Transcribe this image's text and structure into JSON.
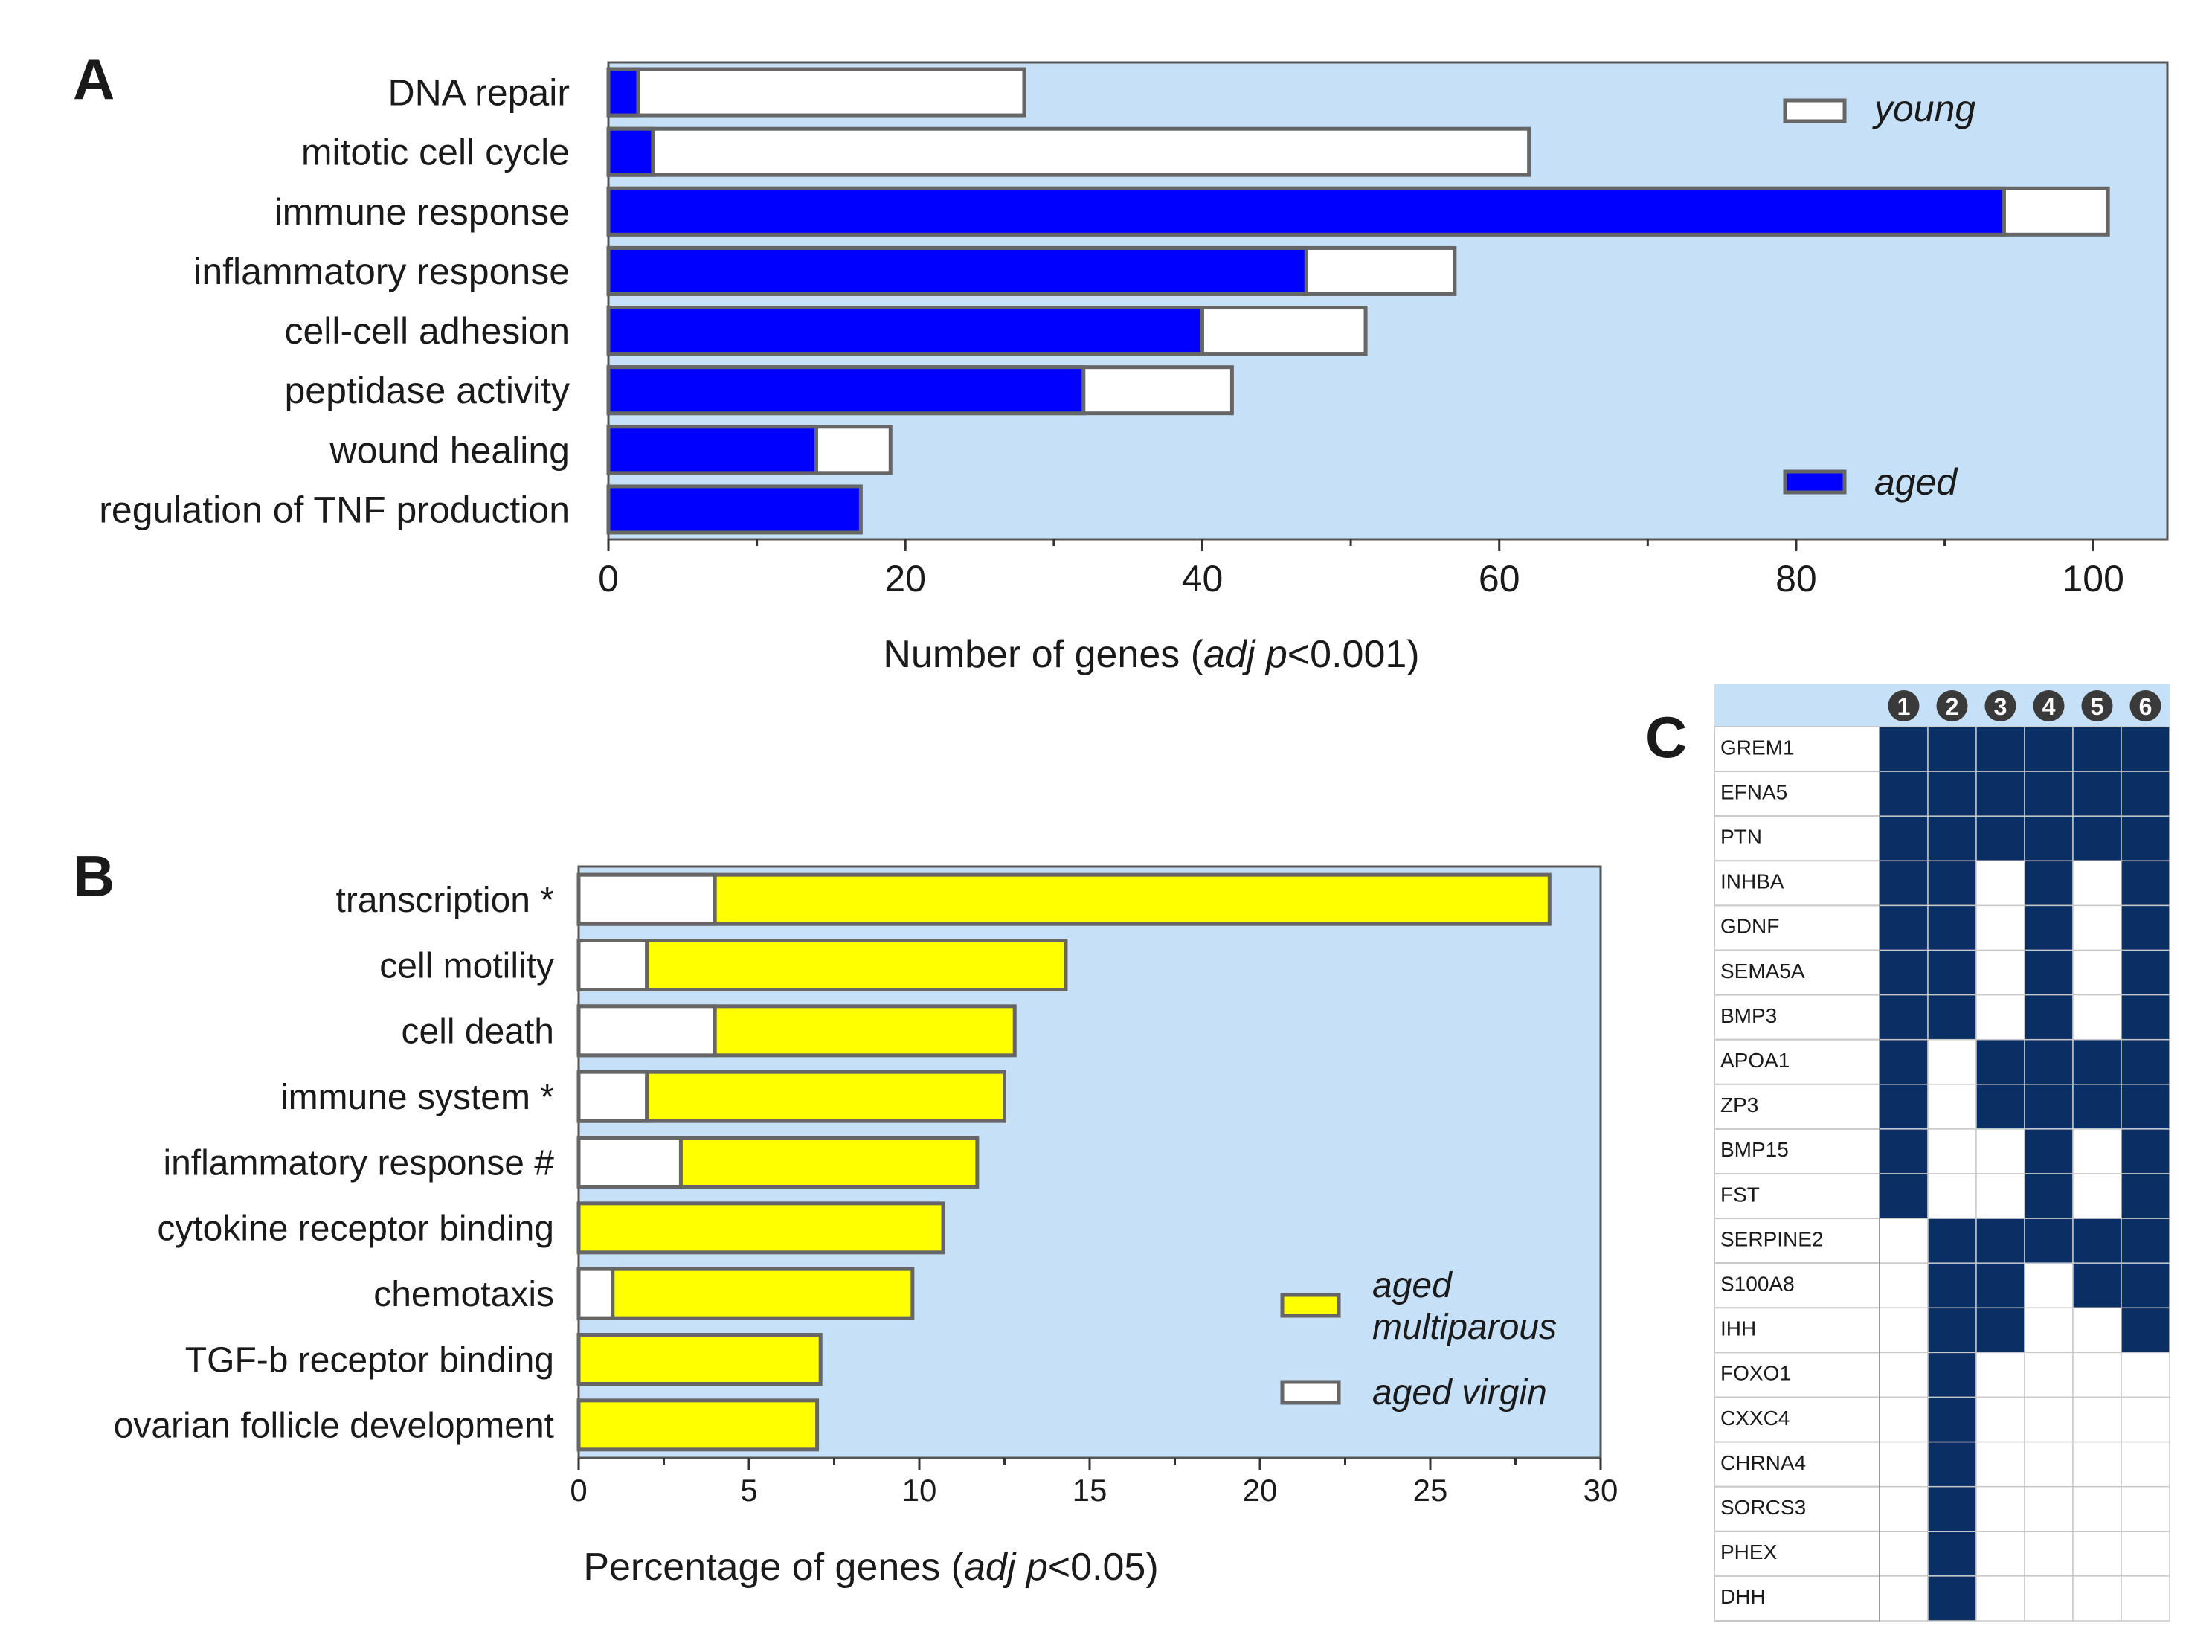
{
  "chart_data": [
    {
      "panel": "A",
      "type": "bar",
      "orientation": "horizontal",
      "layout": "overlapped",
      "categories": [
        "DNA repair",
        "mitotic cell cycle",
        "immune response",
        "inflammatory response",
        "cell-cell adhesion",
        "peptidase activity",
        "wound healing",
        "regulation of TNF production"
      ],
      "series": [
        {
          "name": "young",
          "color": "#ffffff",
          "values": [
            28,
            62,
            101,
            57,
            51,
            42,
            19,
            0
          ]
        },
        {
          "name": "aged",
          "color": "#0000ff",
          "values": [
            2,
            3,
            94,
            47,
            40,
            32,
            14,
            17
          ]
        }
      ],
      "xlim": [
        0,
        105
      ],
      "xticks": [
        0,
        20,
        40,
        60,
        80,
        100
      ],
      "xlabel": {
        "prefix": "Number of genes (",
        "italic": "adj p",
        "suffix": "<0.001)"
      },
      "legend_position": "right",
      "background": "#c5e0f7"
    },
    {
      "panel": "B",
      "type": "bar",
      "orientation": "horizontal",
      "layout": "overlapped",
      "categories": [
        "transcription *",
        "cell motility",
        "cell death",
        "immune system *",
        "inflammatory response #",
        "cytokine receptor binding",
        "chemotaxis",
        "TGF-b receptor binding",
        "ovarian follicle development"
      ],
      "series": [
        {
          "name": "aged multiparous",
          "color": "#ffff00",
          "values": [
            28.5,
            14.3,
            12.8,
            12.5,
            11.7,
            10.7,
            9.8,
            7.1,
            7.0
          ]
        },
        {
          "name": "aged virgin",
          "color": "#ffffff",
          "values": [
            4.0,
            2.0,
            4.0,
            2.0,
            3.0,
            0,
            1.0,
            0,
            0
          ]
        }
      ],
      "legend_labels": {
        "multiparous_line1": "aged",
        "multiparous_line2": "multiparous",
        "virgin": "aged virgin"
      },
      "xlim": [
        0,
        30
      ],
      "xticks": [
        0,
        5,
        10,
        15,
        20,
        25,
        30
      ],
      "xlabel": {
        "prefix": "Percentage of genes (",
        "italic": "adj p",
        "suffix": "<0.05)"
      },
      "legend_position": "bottom-right",
      "background": "#c5e0f7"
    },
    {
      "panel": "C",
      "type": "heatmap",
      "columns": [
        "1",
        "2",
        "3",
        "4",
        "5",
        "6"
      ],
      "rows": [
        "GREM1",
        "EFNA5",
        "PTN",
        "INHBA",
        "GDNF",
        "SEMA5A",
        "BMP3",
        "APOA1",
        "ZP3",
        "BMP15",
        "FST",
        "SERPINE2",
        "S100A8",
        "IHH",
        "FOXO1",
        "CXXC4",
        "CHRNA4",
        "SORCS3",
        "PHEX",
        "DHH"
      ],
      "matrix": [
        [
          1,
          1,
          1,
          1,
          1,
          1
        ],
        [
          1,
          1,
          1,
          1,
          1,
          1
        ],
        [
          1,
          1,
          1,
          1,
          1,
          1
        ],
        [
          1,
          1,
          0,
          1,
          0,
          1
        ],
        [
          1,
          1,
          0,
          1,
          0,
          1
        ],
        [
          1,
          1,
          0,
          1,
          0,
          1
        ],
        [
          1,
          1,
          0,
          1,
          0,
          1
        ],
        [
          1,
          0,
          1,
          1,
          1,
          1
        ],
        [
          1,
          0,
          1,
          1,
          1,
          1
        ],
        [
          1,
          0,
          0,
          1,
          0,
          1
        ],
        [
          1,
          0,
          0,
          1,
          0,
          1
        ],
        [
          0,
          1,
          1,
          1,
          1,
          1
        ],
        [
          0,
          1,
          1,
          0,
          1,
          1
        ],
        [
          0,
          1,
          1,
          0,
          0,
          1
        ],
        [
          0,
          1,
          0,
          0,
          0,
          0
        ],
        [
          0,
          1,
          0,
          0,
          0,
          0
        ],
        [
          0,
          1,
          0,
          0,
          0,
          0
        ],
        [
          0,
          1,
          0,
          0,
          0,
          0
        ],
        [
          0,
          1,
          0,
          0,
          0,
          0
        ],
        [
          0,
          1,
          0,
          0,
          0,
          0
        ]
      ],
      "on_color": "#0a2f64",
      "off_color": "#ffffff",
      "header_color": "#c5e0f7"
    }
  ],
  "panel_labels": {
    "a": "A",
    "b": "B",
    "c": "C"
  }
}
